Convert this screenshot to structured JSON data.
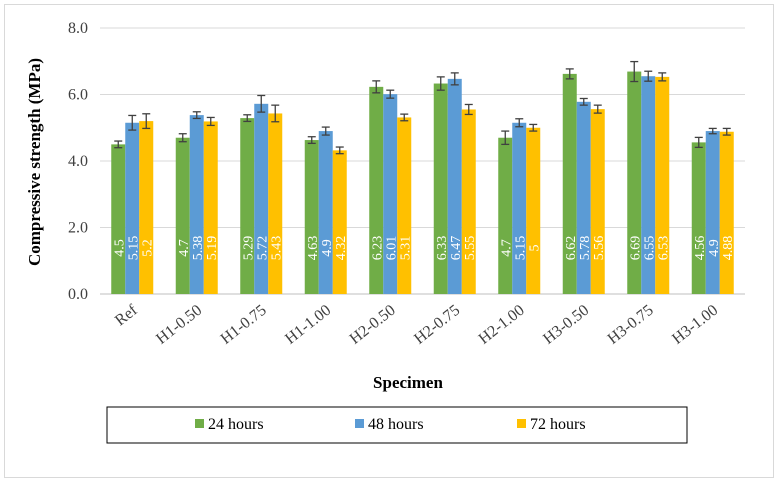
{
  "chart_data": {
    "type": "bar",
    "ylabel": "Compressive strength (MPa)",
    "xlabel": "Specimen",
    "ylim": [
      0,
      8
    ],
    "yticks": [
      "0.0",
      "2.0",
      "4.0",
      "6.0",
      "8.0"
    ],
    "grid": true,
    "legend_position": "bottom",
    "categories": [
      "Ref",
      "H1-0.50",
      "H1-0.75",
      "H1-1.00",
      "H2-0.50",
      "H2-0.75",
      "H2-1.00",
      "H3-0.50",
      "H3-0.75",
      "H3-1.00"
    ],
    "series": [
      {
        "name": "24 hours",
        "color": "#70ad47",
        "values": [
          4.5,
          4.7,
          5.29,
          4.63,
          6.23,
          6.33,
          4.7,
          6.62,
          6.69,
          4.56
        ],
        "labels": [
          "4.5",
          "4.7",
          "5.29",
          "4.63",
          "6.23",
          "6.33",
          "4.7",
          "6.62",
          "6.69",
          "4.56"
        ],
        "errors": [
          0.1,
          0.12,
          0.1,
          0.1,
          0.18,
          0.2,
          0.2,
          0.15,
          0.3,
          0.15
        ]
      },
      {
        "name": "48 hours",
        "color": "#5b9bd5",
        "values": [
          5.15,
          5.38,
          5.72,
          4.9,
          6.01,
          6.47,
          5.15,
          5.78,
          6.55,
          4.9
        ],
        "labels": [
          "5.15",
          "5.38",
          "5.72",
          "4.9",
          "6.01",
          "6.47",
          "5.15",
          "5.78",
          "6.55",
          "4.9"
        ],
        "errors": [
          0.22,
          0.1,
          0.25,
          0.12,
          0.12,
          0.18,
          0.12,
          0.1,
          0.15,
          0.08
        ]
      },
      {
        "name": "72 hours",
        "color": "#ffc000",
        "values": [
          5.2,
          5.19,
          5.43,
          4.32,
          5.31,
          5.55,
          5.0,
          5.56,
          6.53,
          4.88
        ],
        "labels": [
          "5.2",
          "5.19",
          "5.43",
          "4.32",
          "5.31",
          "5.55",
          "5",
          "5.56",
          "6.53",
          "4.88"
        ],
        "errors": [
          0.22,
          0.12,
          0.25,
          0.1,
          0.1,
          0.15,
          0.1,
          0.12,
          0.12,
          0.1
        ]
      }
    ]
  }
}
